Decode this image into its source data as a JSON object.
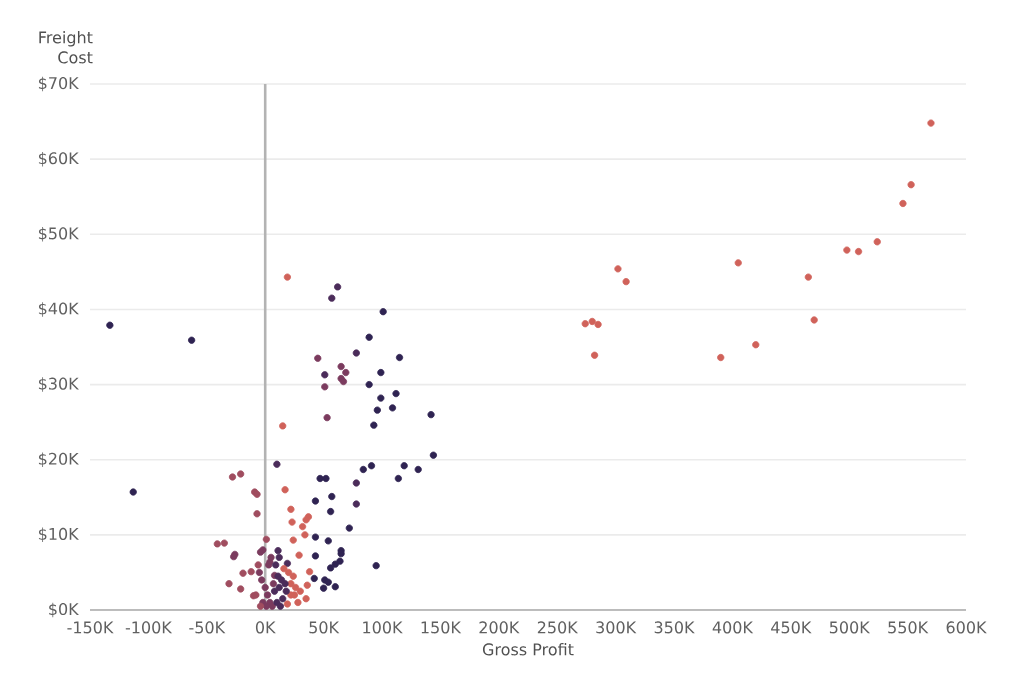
{
  "chart_data": {
    "type": "scatter",
    "xlabel": "Gross Profit",
    "ylabel": "Freight Cost",
    "xlim": [
      -150000,
      600000
    ],
    "xticks": [
      {
        "value": -150000,
        "label": "-150K"
      },
      {
        "value": -100000,
        "label": "-100K"
      },
      {
        "value": -50000,
        "label": "-50K"
      },
      {
        "value": 0,
        "label": "0K"
      },
      {
        "value": 50000,
        "label": "50K"
      },
      {
        "value": 100000,
        "label": "100K"
      },
      {
        "value": 150000,
        "label": "150K"
      },
      {
        "value": 200000,
        "label": "200K"
      },
      {
        "value": 250000,
        "label": "250K"
      },
      {
        "value": 300000,
        "label": "300K"
      },
      {
        "value": 350000,
        "label": "350K"
      },
      {
        "value": 400000,
        "label": "400K"
      },
      {
        "value": 450000,
        "label": "450K"
      },
      {
        "value": 500000,
        "label": "500K"
      },
      {
        "value": 550000,
        "label": "550K"
      },
      {
        "value": 600000,
        "label": "600K"
      }
    ],
    "ylim": [
      0,
      70000
    ],
    "yticks": [
      {
        "value": 0,
        "label": "$0K"
      },
      {
        "value": 10000,
        "label": "$10K"
      },
      {
        "value": 20000,
        "label": "$20K"
      },
      {
        "value": 30000,
        "label": "$30K"
      },
      {
        "value": 40000,
        "label": "$40K"
      },
      {
        "value": 50000,
        "label": "$50K"
      },
      {
        "value": 60000,
        "label": "$60K"
      },
      {
        "value": 70000,
        "label": "$70K"
      }
    ],
    "grid": "y",
    "marker": "circle",
    "ref_lines": [
      {
        "axis": "x",
        "value": 0,
        "color": "#b3b3b3"
      }
    ],
    "x": [
      570000,
      553000,
      546000,
      524000,
      508000,
      498000,
      465000,
      470000,
      405000,
      420000,
      390000,
      302000,
      309000,
      274000,
      280000,
      285000,
      282000,
      -133000,
      -63000,
      -113000,
      19000,
      62000,
      57000,
      101000,
      89000,
      45000,
      78000,
      115000,
      51000,
      65000,
      69000,
      65000,
      67000,
      51000,
      99000,
      89000,
      99000,
      112000,
      96000,
      109000,
      142000,
      53000,
      93000,
      15000,
      144000,
      10000,
      119000,
      91000,
      84000,
      131000,
      114000,
      47000,
      52000,
      78000,
      -21000,
      -28000,
      -9000,
      -7000,
      17000,
      57000,
      43000,
      78000,
      56000,
      22000,
      37000,
      35000,
      -7000,
      23000,
      32000,
      72000,
      34000,
      43000,
      54000,
      24000,
      1000,
      -41000,
      -35000,
      -2000,
      -4000,
      11000,
      65000,
      65000,
      -26000,
      -27000,
      29000,
      43000,
      4000,
      19000,
      95000,
      64000,
      60000,
      56000,
      -12000,
      -19000,
      8000,
      42000,
      51000,
      38000,
      54000,
      50000,
      60000,
      -31000,
      -21000,
      -10000,
      36000,
      22000,
      35000,
      -5000,
      -3000,
      0,
      2000,
      4000,
      6000,
      8000,
      10000,
      12000,
      14000,
      15000,
      18000,
      20000,
      22000,
      25000,
      28000,
      -2000,
      1000,
      3000,
      5000,
      -6000,
      9000,
      12000,
      16000,
      24000,
      30000,
      -8000,
      -4000,
      7000,
      11000,
      17000,
      13000,
      19000,
      26000
    ],
    "values": [
      64800,
      56600,
      54100,
      49000,
      47700,
      47900,
      44300,
      38600,
      46200,
      35300,
      33600,
      45400,
      43700,
      38100,
      38400,
      38000,
      33900,
      37900,
      35900,
      15700,
      44300,
      43000,
      41500,
      39700,
      36300,
      33500,
      34200,
      33600,
      31300,
      32400,
      31600,
      30800,
      30400,
      29700,
      31600,
      30000,
      28200,
      28800,
      26600,
      26900,
      26000,
      25600,
      24600,
      24500,
      20600,
      19400,
      19200,
      19200,
      18700,
      18700,
      17500,
      17500,
      17500,
      16900,
      18100,
      17700,
      15700,
      15400,
      16000,
      15100,
      14500,
      14100,
      13100,
      13400,
      12400,
      12000,
      12800,
      11700,
      11100,
      10900,
      10000,
      9700,
      9200,
      9300,
      9400,
      8800,
      8900,
      8000,
      7700,
      7900,
      7900,
      7500,
      7400,
      7100,
      7300,
      7200,
      6400,
      6200,
      5900,
      6500,
      6100,
      5600,
      5100,
      4900,
      4600,
      4200,
      4000,
      5100,
      3700,
      2900,
      3100,
      3500,
      2800,
      1900,
      3300,
      2000,
      1500,
      5000,
      4000,
      3000,
      2000,
      1000,
      500,
      2500,
      1000,
      3000,
      4000,
      1500,
      2500,
      5000,
      3500,
      2000,
      1000,
      1000,
      500,
      6000,
      7000,
      6000,
      6000,
      7000,
      5500,
      4500,
      2500,
      2000,
      500,
      3500,
      4500,
      3500,
      500,
      800,
      3000
    ],
    "colors": [
      "#d0625a",
      "#d0625a",
      "#d0625a",
      "#d0625a",
      "#d0625a",
      "#d0625a",
      "#d0625a",
      "#d0625a",
      "#d0625a",
      "#d0625a",
      "#d0625a",
      "#d0625a",
      "#d0625a",
      "#d0625a",
      "#d0625a",
      "#d0625a",
      "#d0625a",
      "#2f2352",
      "#2f2352",
      "#2f2352",
      "#d0625a",
      "#4b2c5a",
      "#4b2c5a",
      "#2f2352",
      "#2f2352",
      "#7b3b5e",
      "#4b2c5a",
      "#2f2352",
      "#4b2c5a",
      "#7b3b5e",
      "#7b3b5e",
      "#7b3b5e",
      "#7b3b5e",
      "#7b3b5e",
      "#2f2352",
      "#2f2352",
      "#2f2352",
      "#2f2352",
      "#2f2352",
      "#2f2352",
      "#2f2352",
      "#7b3b5e",
      "#2f2352",
      "#d0625a",
      "#2f2352",
      "#4b2c5a",
      "#2f2352",
      "#2f2352",
      "#2f2352",
      "#2f2352",
      "#2f2352",
      "#2f2352",
      "#2f2352",
      "#4b2c5a",
      "#a04d5f",
      "#a04d5f",
      "#a04d5f",
      "#a04d5f",
      "#d0625a",
      "#2f2352",
      "#2f2352",
      "#4b2c5a",
      "#2f2352",
      "#d0625a",
      "#d0625a",
      "#d0625a",
      "#a04d5f",
      "#d0625a",
      "#d0625a",
      "#2f2352",
      "#d0625a",
      "#2f2352",
      "#2f2352",
      "#d0625a",
      "#a04d5f",
      "#a04d5f",
      "#a04d5f",
      "#7b3b5e",
      "#7b3b5e",
      "#4b2c5a",
      "#2f2352",
      "#2f2352",
      "#7b3b5e",
      "#7b3b5e",
      "#d0625a",
      "#2f2352",
      "#7b3b5e",
      "#4b2c5a",
      "#2f2352",
      "#2f2352",
      "#2f2352",
      "#2f2352",
      "#a04d5f",
      "#a04d5f",
      "#7b3b5e",
      "#2f2352",
      "#2f2352",
      "#d0625a",
      "#2f2352",
      "#2f2352",
      "#2f2352",
      "#a04d5f",
      "#a04d5f",
      "#a04d5f",
      "#d0625a",
      "#d0625a",
      "#d0625a",
      "#7b3b5e",
      "#7b3b5e",
      "#7b3b5e",
      "#7b3b5e",
      "#7b3b5e",
      "#7b3b5e",
      "#4b2c5a",
      "#4b2c5a",
      "#4b2c5a",
      "#4b2c5a",
      "#4b2c5a",
      "#4b2c5a",
      "#d0625a",
      "#d0625a",
      "#d0625a",
      "#d0625a",
      "#7b3b5e",
      "#7b3b5e",
      "#7b3b5e",
      "#7b3b5e",
      "#a04d5f",
      "#4b2c5a",
      "#4b2c5a",
      "#d0625a",
      "#d0625a",
      "#d0625a",
      "#a04d5f",
      "#a04d5f",
      "#7b3b5e",
      "#4b2c5a",
      "#4b2c5a",
      "#4b2c5a",
      "#d0625a",
      "#d0625a"
    ]
  }
}
